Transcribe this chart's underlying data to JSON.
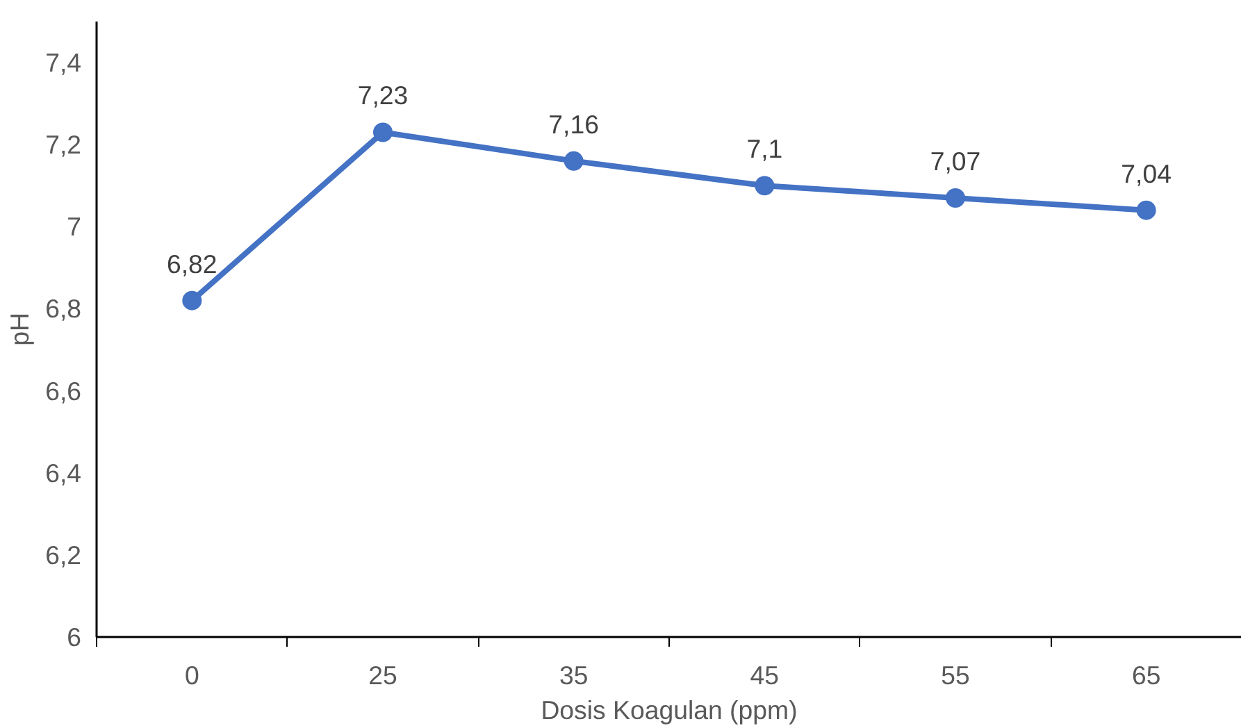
{
  "chart_data": {
    "type": "line",
    "xlabel": "Dosis Koagulan (ppm)",
    "ylabel": "pH",
    "categories": [
      "0",
      "25",
      "35",
      "45",
      "55",
      "65"
    ],
    "series": [
      {
        "color": "#4472c4",
        "values": [
          6.82,
          7.23,
          7.16,
          7.1,
          7.07,
          7.04
        ]
      }
    ],
    "value_labels": [
      "6,82",
      "7,23",
      "7,16",
      "7,1",
      "7,07",
      "7,04"
    ],
    "ylim": [
      6,
      7.5
    ],
    "yticks": [
      {
        "value": 6,
        "label": "6"
      },
      {
        "value": 6.2,
        "label": "6,2"
      },
      {
        "value": 6.4,
        "label": "6,4"
      },
      {
        "value": 6.6,
        "label": "6,6"
      },
      {
        "value": 6.8,
        "label": "6,8"
      },
      {
        "value": 7,
        "label": "7"
      },
      {
        "value": 7.2,
        "label": "7,2"
      },
      {
        "value": 7.4,
        "label": "7,4"
      }
    ],
    "grid": false,
    "marker": "circle",
    "line_style": "solid"
  }
}
